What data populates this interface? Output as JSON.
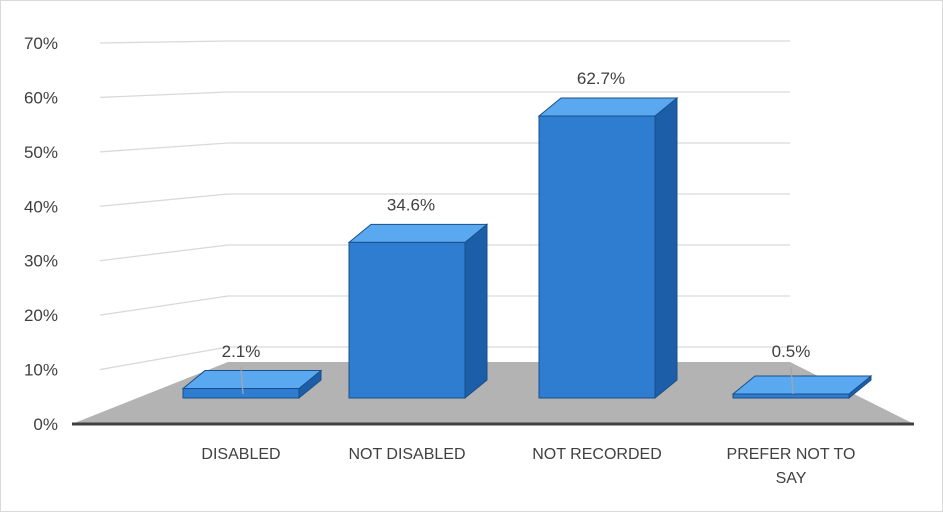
{
  "chart_data": {
    "type": "bar",
    "categories": [
      "DISABLED",
      "NOT DISABLED",
      "NOT RECORDED",
      "PREFER NOT TO SAY"
    ],
    "series": [
      {
        "values": [
          2.1,
          34.6,
          62.7,
          0.5
        ]
      }
    ],
    "data_labels": [
      "2.1%",
      "34.6%",
      "62.7%",
      "0.5%"
    ],
    "title": "",
    "xlabel": "",
    "ylabel": "",
    "ylim": [
      0,
      70
    ],
    "yticks": [
      0,
      10,
      20,
      30,
      40,
      50,
      60,
      70
    ],
    "ytick_labels": [
      "0%",
      "10%",
      "20%",
      "30%",
      "40%",
      "50%",
      "60%",
      "70%"
    ],
    "grid": true,
    "legend": "none",
    "style": "3d-column",
    "colors": {
      "bar_front": "#2e7dd1",
      "bar_side": "#1c5ea8",
      "bar_top": "#5aa8f0",
      "bar_edge": "#1a4f8a",
      "floor": "#b3b3b3",
      "gridline": "#d9d9d9",
      "axis": "#404040",
      "border": "#d9d9d9"
    }
  }
}
